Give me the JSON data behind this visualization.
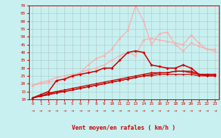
{
  "background_color": "#c8f0f0",
  "grid_color": "#b0cccc",
  "xlabel": "Vent moyen/en rafales ( km/h )",
  "xlabel_color": "#cc0000",
  "tick_color": "#cc0000",
  "ylim": [
    10,
    70
  ],
  "yticks": [
    10,
    15,
    20,
    25,
    30,
    35,
    40,
    45,
    50,
    55,
    60,
    65,
    70
  ],
  "xlim": [
    0,
    23
  ],
  "xticks": [
    0,
    1,
    2,
    3,
    4,
    5,
    6,
    7,
    8,
    9,
    10,
    11,
    12,
    13,
    14,
    15,
    16,
    17,
    18,
    19,
    20,
    21,
    22,
    23
  ],
  "dark_red": "#cc0000",
  "light_red": "#ffaaaa",
  "series_light": [
    [
      19,
      21,
      22,
      24,
      25,
      26,
      27,
      29,
      30,
      32,
      35,
      38,
      40,
      38,
      48,
      49,
      48,
      47,
      46,
      45,
      51,
      46,
      42,
      42
    ],
    [
      19,
      20,
      21,
      22,
      23,
      24,
      27,
      32,
      36,
      38,
      42,
      49,
      54,
      70,
      60,
      45,
      52,
      53,
      45,
      41,
      46,
      44,
      42,
      41
    ]
  ],
  "series_dark": [
    [
      11,
      13,
      15,
      22,
      23,
      25,
      26,
      27,
      28,
      30,
      30,
      35,
      40,
      41,
      40,
      32,
      31,
      30,
      30,
      32,
      30,
      26,
      26,
      26
    ],
    [
      11,
      12,
      14,
      15,
      15,
      16,
      17,
      18,
      19,
      20,
      21,
      22,
      23,
      24,
      25,
      26,
      27,
      27,
      28,
      28,
      28,
      26,
      26,
      26
    ],
    [
      11,
      12,
      13,
      15,
      16,
      17,
      18,
      19,
      20,
      21,
      22,
      23,
      24,
      25,
      26,
      27,
      27,
      27,
      28,
      28,
      27,
      26,
      25,
      25
    ],
    [
      11,
      12,
      13,
      14,
      15,
      16,
      17,
      18,
      19,
      20,
      21,
      22,
      23,
      24,
      25,
      25,
      26,
      26,
      26,
      26,
      26,
      25,
      25,
      25
    ]
  ],
  "figsize": [
    3.2,
    2.0
  ],
  "dpi": 100
}
